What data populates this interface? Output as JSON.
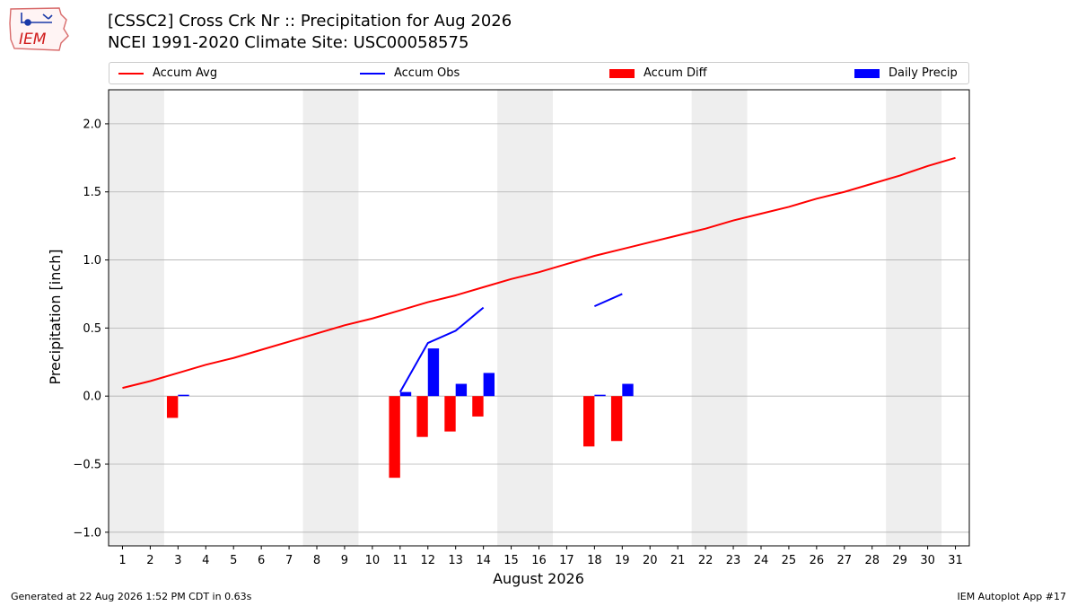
{
  "header": {
    "title_line1": "[CSSC2] Cross Crk Nr :: Precipitation for Aug 2026",
    "title_line2": "NCEI 1991-2020 Climate Site: USC00058575",
    "logo_text": "IEM"
  },
  "footer": {
    "generated": "Generated at 22 Aug 2026 1:52 PM CDT in 0.63s",
    "app": "IEM Autoplot App #17"
  },
  "legend": {
    "items": [
      {
        "label": "Accum Avg",
        "kind": "line",
        "color": "#ff0000"
      },
      {
        "label": "Accum Obs",
        "kind": "line",
        "color": "#0000ff"
      },
      {
        "label": "Accum Diff",
        "kind": "patch",
        "color": "#ff0000"
      },
      {
        "label": "Daily Precip",
        "kind": "patch",
        "color": "#0000ff"
      }
    ]
  },
  "chart_data": {
    "type": "bar",
    "xlabel": "August 2026",
    "ylabel": "Precipitation [inch]",
    "xlim": [
      0.5,
      31.5
    ],
    "ylim": [
      -1.1,
      2.25
    ],
    "yticks": [
      -1.0,
      -0.5,
      0.0,
      0.5,
      1.0,
      1.5,
      2.0
    ],
    "ytick_labels": [
      "−1.0",
      "−0.5",
      "0.0",
      "0.5",
      "1.0",
      "1.5",
      "2.0"
    ],
    "xticks": [
      1,
      2,
      3,
      4,
      5,
      6,
      7,
      8,
      9,
      10,
      11,
      12,
      13,
      14,
      15,
      16,
      17,
      18,
      19,
      20,
      21,
      22,
      23,
      24,
      25,
      26,
      27,
      28,
      29,
      30,
      31
    ],
    "grid": "y",
    "legend_position": "top",
    "weekend_shading": [
      [
        0.5,
        2.5
      ],
      [
        7.5,
        9.5
      ],
      [
        14.5,
        16.5
      ],
      [
        21.5,
        23.5
      ],
      [
        28.5,
        30.5
      ]
    ],
    "colors": {
      "avg": "#ff0000",
      "obs": "#0000ff",
      "diff": "#ff0000",
      "daily": "#0000ff",
      "weekend": "#eeeeee",
      "grid": "#b0b0b0"
    },
    "series": [
      {
        "name": "Accum Avg",
        "kind": "line",
        "x": [
          1,
          2,
          3,
          4,
          5,
          6,
          7,
          8,
          9,
          10,
          11,
          12,
          13,
          14,
          15,
          16,
          17,
          18,
          19,
          20,
          21,
          22,
          23,
          24,
          25,
          26,
          27,
          28,
          29,
          30,
          31
        ],
        "values": [
          0.06,
          0.11,
          0.17,
          0.23,
          0.28,
          0.34,
          0.4,
          0.46,
          0.52,
          0.57,
          0.63,
          0.69,
          0.74,
          0.8,
          0.86,
          0.91,
          0.97,
          1.03,
          1.08,
          1.13,
          1.18,
          1.23,
          1.29,
          1.34,
          1.39,
          1.45,
          1.5,
          1.56,
          1.62,
          1.69,
          1.75
        ]
      },
      {
        "name": "Accum Obs",
        "kind": "line",
        "segments": [
          {
            "x": [
              11,
              12,
              13,
              14
            ],
            "values": [
              0.03,
              0.39,
              0.48,
              0.65
            ]
          },
          {
            "x": [
              18,
              19
            ],
            "values": [
              0.66,
              0.75
            ]
          }
        ]
      },
      {
        "name": "Accum Diff",
        "kind": "bar",
        "x": [
          3,
          11,
          12,
          13,
          14,
          18,
          19
        ],
        "values": [
          -0.16,
          -0.6,
          -0.3,
          -0.26,
          -0.15,
          -0.37,
          -0.33
        ]
      },
      {
        "name": "Daily Precip",
        "kind": "bar",
        "x": [
          3,
          11,
          12,
          13,
          14,
          18,
          19
        ],
        "values": [
          0.01,
          0.03,
          0.35,
          0.09,
          0.17,
          0.01,
          0.09
        ]
      }
    ]
  }
}
